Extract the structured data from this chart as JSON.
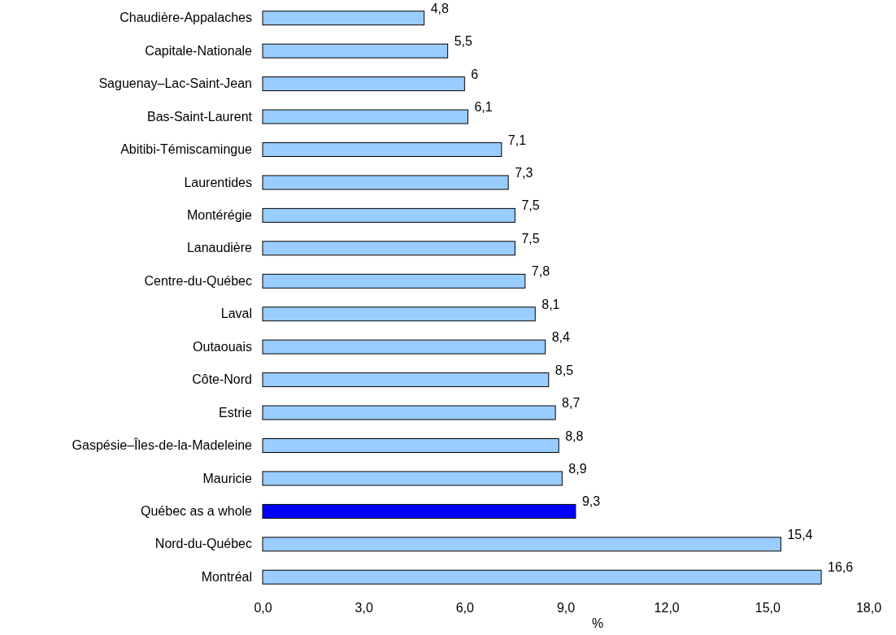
{
  "chart_data": {
    "type": "bar",
    "orientation": "horizontal",
    "xlabel": "%",
    "categories": [
      "Chaudière-Appalaches",
      "Capitale-Nationale",
      "Saguenay–Lac-Saint-Jean",
      "Bas-Saint-Laurent",
      "Abitibi-Témiscamingue",
      "Laurentides",
      "Montérégie",
      "Lanaudière",
      "Centre-du-Québec",
      "Laval",
      "Outaouais",
      "Côte-Nord",
      "Estrie",
      "Gaspésie–Îles-de-la-Madeleine",
      "Mauricie",
      "Québec as a whole",
      "Nord-du-Québec",
      "Montréal"
    ],
    "values": [
      4.8,
      5.5,
      6,
      6.1,
      7.1,
      7.3,
      7.5,
      7.5,
      7.8,
      8.1,
      8.4,
      8.5,
      8.7,
      8.8,
      8.9,
      9.3,
      15.4,
      16.6
    ],
    "value_labels": [
      "4,8",
      "5,5",
      "6",
      "6,1",
      "7,1",
      "7,3",
      "7,5",
      "7,5",
      "7,8",
      "8,1",
      "8,4",
      "8,5",
      "8,7",
      "8,8",
      "8,9",
      "9,3",
      "15,4",
      "16,6"
    ],
    "colors": [
      "#99ccff",
      "#99ccff",
      "#99ccff",
      "#99ccff",
      "#99ccff",
      "#99ccff",
      "#99ccff",
      "#99ccff",
      "#99ccff",
      "#99ccff",
      "#99ccff",
      "#99ccff",
      "#99ccff",
      "#99ccff",
      "#99ccff",
      "#0000ff",
      "#99ccff",
      "#99ccff"
    ],
    "xlim": [
      0,
      18
    ],
    "xticks": [
      {
        "value": 0,
        "label": "0,0"
      },
      {
        "value": 3,
        "label": "3,0"
      },
      {
        "value": 6,
        "label": "6,0"
      },
      {
        "value": 9,
        "label": "9,0"
      },
      {
        "value": 12,
        "label": "12,0"
      },
      {
        "value": 15,
        "label": "15,0"
      },
      {
        "value": 18,
        "label": "18,0"
      }
    ],
    "grid": false
  }
}
